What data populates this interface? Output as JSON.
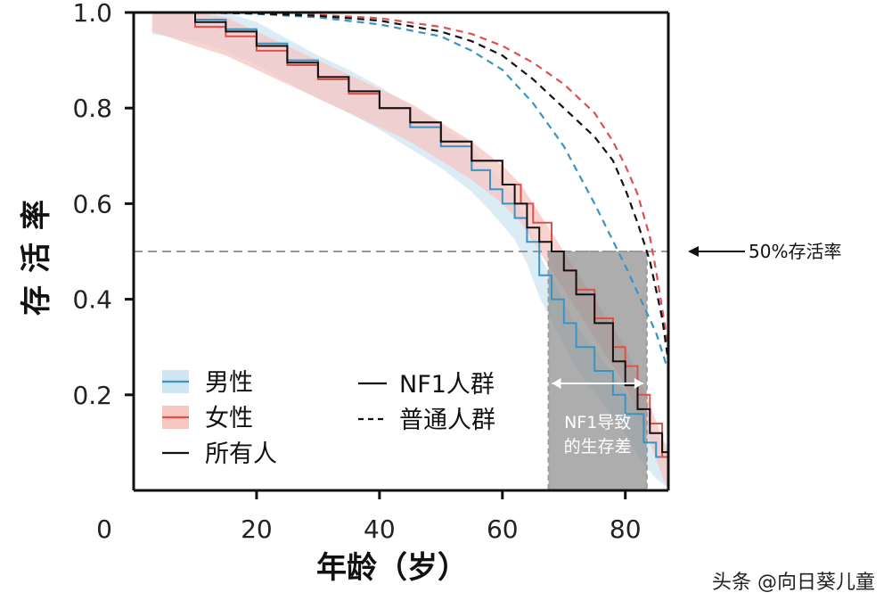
{
  "chart_data": {
    "type": "line",
    "xlabel": "年龄（岁）",
    "ylabel": "存活率",
    "xlim": [
      0,
      87
    ],
    "ylim": [
      0.0,
      1.0
    ],
    "x_ticks": [
      "0",
      "20",
      "40",
      "60",
      "80"
    ],
    "y_ticks": [
      "0.2",
      "0.4",
      "0.6",
      "0.8",
      "1.0"
    ],
    "grid": false,
    "legend_left": [
      {
        "label": "男性",
        "color": "#3a93c3",
        "band": "#cfe6f2"
      },
      {
        "label": "女性",
        "color": "#e0504a",
        "band": "#f6c6c1"
      },
      {
        "label": "所有人",
        "color": "#111111"
      }
    ],
    "legend_right": [
      {
        "label": "NF1人群",
        "style": "solid"
      },
      {
        "label": "普通人群",
        "style": "dashed"
      }
    ],
    "series": [
      {
        "name": "男性",
        "group": "NF1人群",
        "color": "#3a93c3",
        "x": [
          3,
          10,
          15,
          20,
          25,
          30,
          35,
          40,
          45,
          50,
          55,
          58,
          60,
          62,
          64,
          66,
          68,
          70,
          72,
          75,
          78,
          80,
          83,
          85,
          87
        ],
        "y": [
          1.0,
          0.985,
          0.965,
          0.935,
          0.9,
          0.865,
          0.835,
          0.8,
          0.76,
          0.72,
          0.67,
          0.63,
          0.6,
          0.57,
          0.52,
          0.45,
          0.4,
          0.35,
          0.3,
          0.25,
          0.2,
          0.16,
          0.1,
          0.07,
          0.05
        ]
      },
      {
        "name": "女性",
        "group": "NF1人群",
        "color": "#e0504a",
        "x": [
          3,
          10,
          15,
          20,
          25,
          30,
          35,
          40,
          45,
          50,
          55,
          60,
          63,
          65,
          68,
          70,
          72,
          75,
          78,
          80,
          82,
          84,
          86,
          87
        ],
        "y": [
          1.0,
          0.97,
          0.95,
          0.92,
          0.89,
          0.86,
          0.83,
          0.8,
          0.77,
          0.73,
          0.69,
          0.64,
          0.6,
          0.56,
          0.5,
          0.46,
          0.42,
          0.36,
          0.3,
          0.26,
          0.2,
          0.14,
          0.07,
          0.04
        ]
      },
      {
        "name": "所有人",
        "group": "NF1人群",
        "color": "#111111",
        "x": [
          3,
          10,
          15,
          20,
          25,
          30,
          35,
          40,
          45,
          50,
          55,
          60,
          62,
          64,
          66,
          68,
          70,
          72,
          75,
          78,
          80,
          82,
          84,
          86,
          87
        ],
        "y": [
          1.0,
          0.98,
          0.96,
          0.93,
          0.895,
          0.865,
          0.835,
          0.8,
          0.77,
          0.73,
          0.69,
          0.64,
          0.6,
          0.55,
          0.52,
          0.5,
          0.46,
          0.41,
          0.35,
          0.27,
          0.22,
          0.17,
          0.12,
          0.08,
          0.05
        ]
      },
      {
        "name": "男性",
        "group": "普通人群",
        "color": "#3a93c3",
        "dashed": true,
        "x": [
          10,
          20,
          30,
          40,
          50,
          55,
          60,
          65,
          70,
          75,
          80,
          85,
          87
        ],
        "y": [
          1.0,
          0.997,
          0.99,
          0.975,
          0.95,
          0.92,
          0.88,
          0.81,
          0.72,
          0.6,
          0.47,
          0.33,
          0.25
        ]
      },
      {
        "name": "女性",
        "group": "普通人群",
        "color": "#e0504a",
        "dashed": true,
        "x": [
          10,
          20,
          30,
          40,
          50,
          55,
          60,
          65,
          70,
          75,
          78,
          80,
          82,
          84,
          85,
          86,
          87
        ],
        "y": [
          1.0,
          0.998,
          0.995,
          0.988,
          0.97,
          0.955,
          0.93,
          0.895,
          0.85,
          0.79,
          0.73,
          0.68,
          0.62,
          0.53,
          0.46,
          0.38,
          0.3
        ]
      },
      {
        "name": "所有人",
        "group": "普通人群",
        "color": "#111111",
        "dashed": true,
        "x": [
          10,
          20,
          30,
          40,
          50,
          55,
          60,
          65,
          70,
          75,
          78,
          80,
          82,
          84,
          85,
          86,
          87
        ],
        "y": [
          1.0,
          0.998,
          0.993,
          0.983,
          0.96,
          0.94,
          0.91,
          0.86,
          0.8,
          0.74,
          0.69,
          0.63,
          0.56,
          0.48,
          0.42,
          0.36,
          0.27
        ]
      }
    ],
    "reference_line": {
      "y": 0.5,
      "label": "50%存活率"
    },
    "highlight_box": {
      "x_from": 67.5,
      "x_to": 83.5,
      "y_from": 0.0,
      "y_to": 0.5,
      "label_line1": "NF1导致",
      "label_line2": "的生存差"
    },
    "watermark": "头条 @向日葵儿童"
  }
}
